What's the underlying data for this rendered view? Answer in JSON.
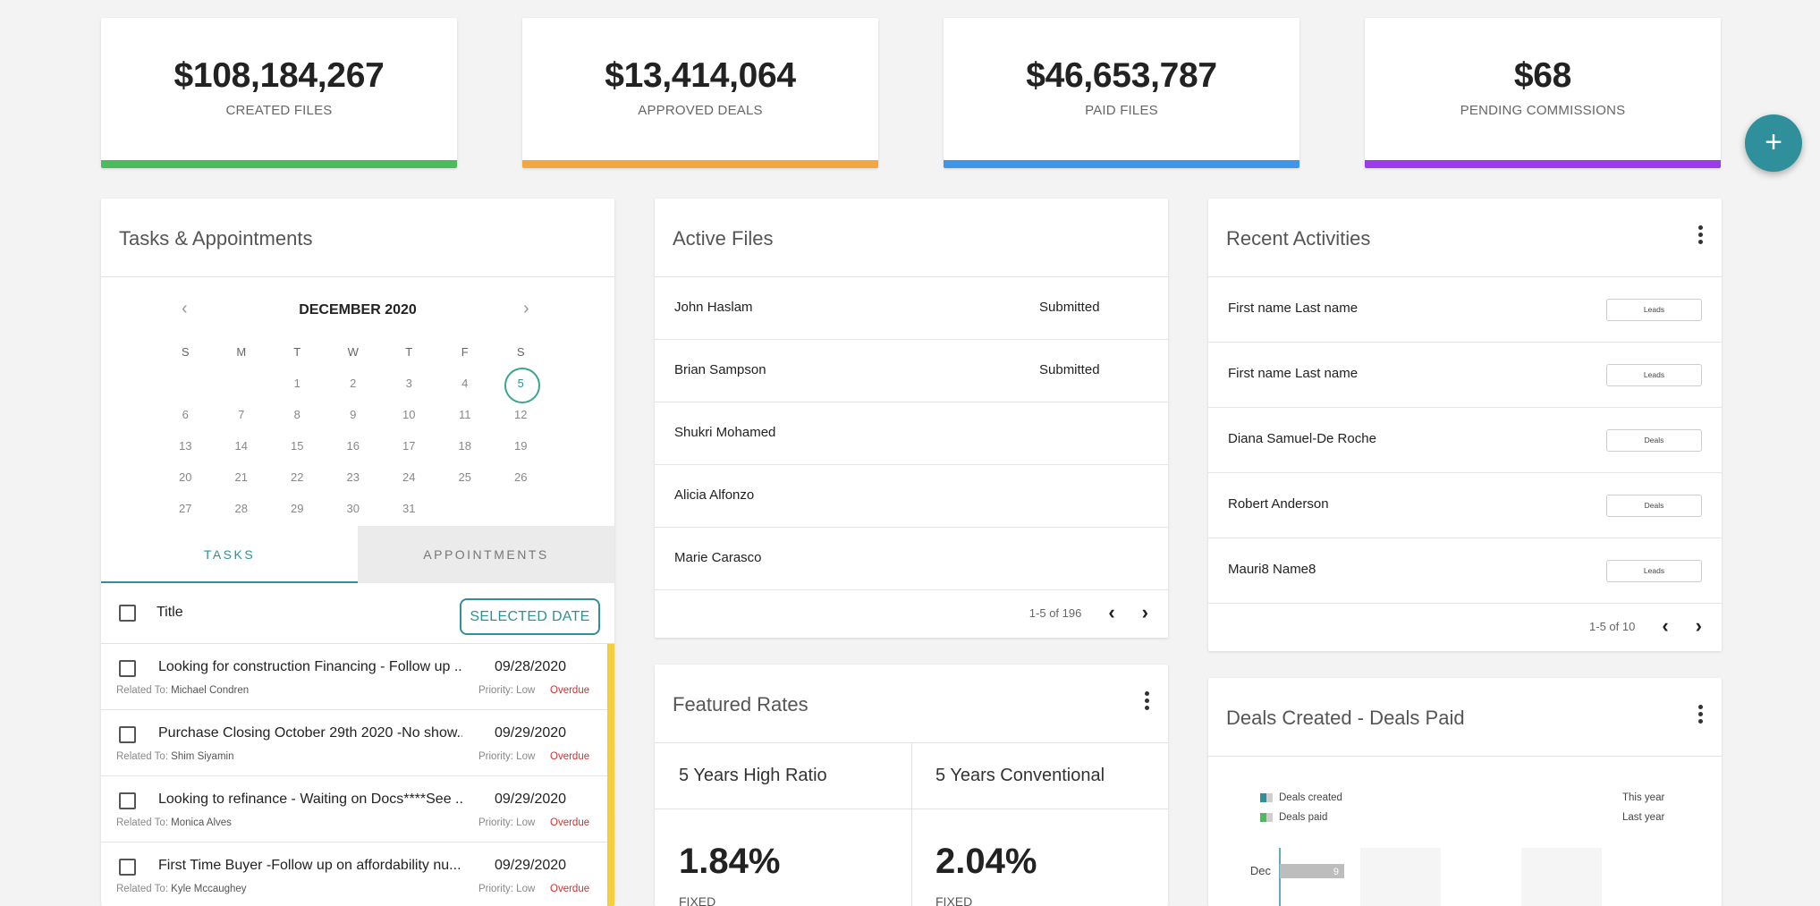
{
  "stats": [
    {
      "amount": "$108,184,267",
      "label": "CREATED FILES",
      "color": "#4cbb5c"
    },
    {
      "amount": "$13,414,064",
      "label": "APPROVED DEALS",
      "color": "#f2a644"
    },
    {
      "amount": "$46,653,787",
      "label": "PAID FILES",
      "color": "#4096e6"
    },
    {
      "amount": "$68",
      "label": "PENDING COMMISSIONS",
      "color": "#9b3ce8"
    }
  ],
  "fab": {
    "icon": "plus-icon",
    "glyph": "+"
  },
  "tasks_panel": {
    "title": "Tasks & Appointments",
    "calendar": {
      "month": "DECEMBER 2020",
      "prev": "‹",
      "next": "›",
      "weekdays": [
        "S",
        "M",
        "T",
        "W",
        "T",
        "F",
        "S"
      ],
      "days": [
        "",
        "",
        "1",
        "2",
        "3",
        "4",
        "5",
        "6",
        "7",
        "8",
        "9",
        "10",
        "11",
        "12",
        "13",
        "14",
        "15",
        "16",
        "17",
        "18",
        "19",
        "20",
        "21",
        "22",
        "23",
        "24",
        "25",
        "26",
        "27",
        "28",
        "29",
        "30",
        "31"
      ],
      "selected_day": "5"
    },
    "tabs": {
      "tasks": "TASKS",
      "appointments": "APPOINTMENTS"
    },
    "list_header": {
      "title": "Title",
      "button": "SELECTED DATE"
    },
    "items": [
      {
        "title": "Looking for construction Financing - Follow up ...",
        "date": "09/28/2020",
        "related_label": "Related To:",
        "related": "Michael Condren",
        "priority": "Priority: Low",
        "status": "Overdue"
      },
      {
        "title": "Purchase Closing October 29th 2020 -No show...",
        "date": "09/29/2020",
        "related_label": "Related To:",
        "related": "Shim Siyamin",
        "priority": "Priority: Low",
        "status": "Overdue"
      },
      {
        "title": "Looking to refinance - Waiting on Docs****See ...",
        "date": "09/29/2020",
        "related_label": "Related To:",
        "related": "Monica Alves",
        "priority": "Priority: Low",
        "status": "Overdue"
      },
      {
        "title": "First Time Buyer -Follow up on affordability nu...",
        "date": "09/29/2020",
        "related_label": "Related To:",
        "related": "Kyle Mccaughey",
        "priority": "Priority: Low",
        "status": "Overdue"
      }
    ],
    "accent_color": "#2f8f9b"
  },
  "active_files": {
    "title": "Active Files",
    "rows": [
      {
        "name": "John Haslam",
        "status": "Submitted"
      },
      {
        "name": "Brian Sampson",
        "status": "Submitted"
      },
      {
        "name": "Shukri Mohamed",
        "status": ""
      },
      {
        "name": "Alicia Alfonzo",
        "status": ""
      },
      {
        "name": "Marie Carasco",
        "status": ""
      }
    ],
    "pagination": {
      "range": "1-5 of 196",
      "prev": "‹",
      "next": "›"
    }
  },
  "featured_rates": {
    "title": "Featured Rates",
    "rates": [
      {
        "name": "5 Years High Ratio",
        "value": "1.84%",
        "type": "FIXED"
      },
      {
        "name": "5 Years Conventional",
        "value": "2.04%",
        "type": "FIXED"
      }
    ]
  },
  "recent_activities": {
    "title": "Recent Activities",
    "rows": [
      {
        "name": "First name Last name",
        "badge": "Leads"
      },
      {
        "name": "First name Last name",
        "badge": "Leads"
      },
      {
        "name": "Diana Samuel-De Roche",
        "badge": "Deals"
      },
      {
        "name": "Robert Anderson",
        "badge": "Deals"
      },
      {
        "name": "Mauri8 Name8",
        "badge": "Leads"
      }
    ],
    "pagination": {
      "range": "1-5 of 10",
      "prev": "‹",
      "next": "›"
    }
  },
  "deals_chart": {
    "title": "Deals Created - Deals Paid",
    "legend": [
      {
        "label": "Deals created",
        "period": "This year",
        "colors": [
          "#2f8f9b",
          "#cfcfcf"
        ]
      },
      {
        "label": "Deals paid",
        "period": "Last year",
        "colors": [
          "#4cbb5c",
          "#cfcfcf"
        ]
      }
    ],
    "chart_data": {
      "type": "bar",
      "categories": [
        "Dec"
      ],
      "series": [
        {
          "name": "Deals created",
          "values": [
            9
          ]
        }
      ]
    }
  }
}
